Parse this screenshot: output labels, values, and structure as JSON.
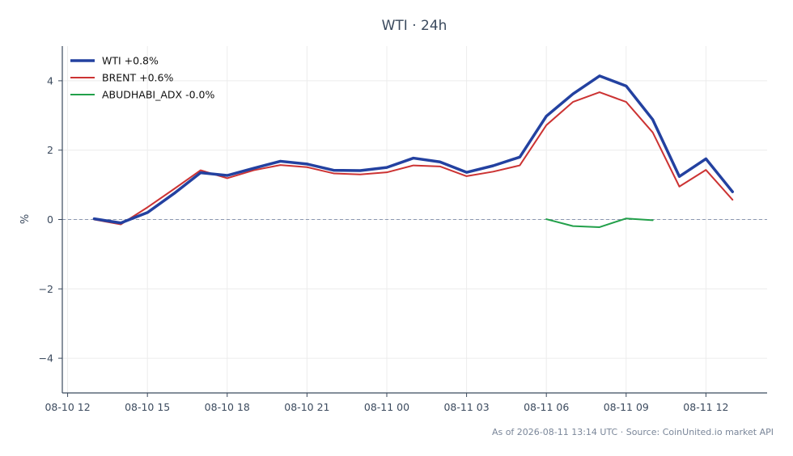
{
  "chart_data": {
    "type": "line",
    "title": "WTI · 24h",
    "ylabel": "%",
    "xlabel": "",
    "ylim": [
      -5,
      5
    ],
    "yticks": [
      -4,
      -2,
      0,
      2,
      4
    ],
    "ytick_labels": [
      "−4",
      "−2",
      "0",
      "2",
      "4"
    ],
    "xlim": [
      -0.2,
      26.3
    ],
    "xticks": [
      0,
      3,
      6,
      9,
      12,
      15,
      18,
      21,
      24
    ],
    "xtick_labels": [
      "08-10 12",
      "08-10 15",
      "08-10 18",
      "08-10 21",
      "08-11 00",
      "08-11 03",
      "08-11 06",
      "08-11 09",
      "08-11 12"
    ],
    "x_hours": [
      1,
      2,
      3,
      4,
      5,
      6,
      7,
      8,
      9,
      10,
      11,
      12,
      13,
      14,
      15,
      16,
      17,
      18,
      19,
      20,
      21,
      22,
      23,
      24,
      25
    ],
    "grid": true,
    "zero_line": true,
    "legend_position": "top-left",
    "series": [
      {
        "name": "WTI +0.8%",
        "color": "#2341a0",
        "width": 3.5,
        "x": [
          1,
          2,
          3,
          4,
          5,
          6,
          7,
          8,
          9,
          10,
          11,
          12,
          13,
          14,
          15,
          16,
          17,
          18,
          19,
          20,
          21,
          22,
          23,
          24,
          25
        ],
        "values": [
          0.02,
          -0.1,
          0.2,
          0.75,
          1.35,
          1.27,
          1.48,
          1.68,
          1.6,
          1.42,
          1.41,
          1.5,
          1.77,
          1.66,
          1.36,
          1.55,
          1.8,
          2.98,
          3.62,
          4.14,
          3.85,
          2.88,
          1.24,
          1.75,
          0.8
        ]
      },
      {
        "name": "BRENT +0.6%",
        "color": "#cc3333",
        "width": 2,
        "x": [
          1,
          2,
          3,
          4,
          5,
          6,
          7,
          8,
          9,
          10,
          11,
          12,
          13,
          14,
          15,
          16,
          17,
          18,
          19,
          20,
          21,
          22,
          23,
          24,
          25
        ],
        "values": [
          0.0,
          -0.14,
          0.35,
          0.88,
          1.42,
          1.19,
          1.42,
          1.57,
          1.51,
          1.33,
          1.3,
          1.36,
          1.56,
          1.53,
          1.25,
          1.38,
          1.56,
          2.72,
          3.39,
          3.67,
          3.39,
          2.51,
          0.95,
          1.43,
          0.57
        ]
      },
      {
        "name": "ABUDHABI_ADX -0.0%",
        "color": "#22a04a",
        "width": 2,
        "x": [
          18,
          19,
          20,
          21,
          22
        ],
        "values": [
          0.01,
          -0.19,
          -0.22,
          0.03,
          -0.02
        ]
      }
    ],
    "footer": "As of 2026-08-11 13:14 UTC · Source: CoinUnited.io market API"
  }
}
